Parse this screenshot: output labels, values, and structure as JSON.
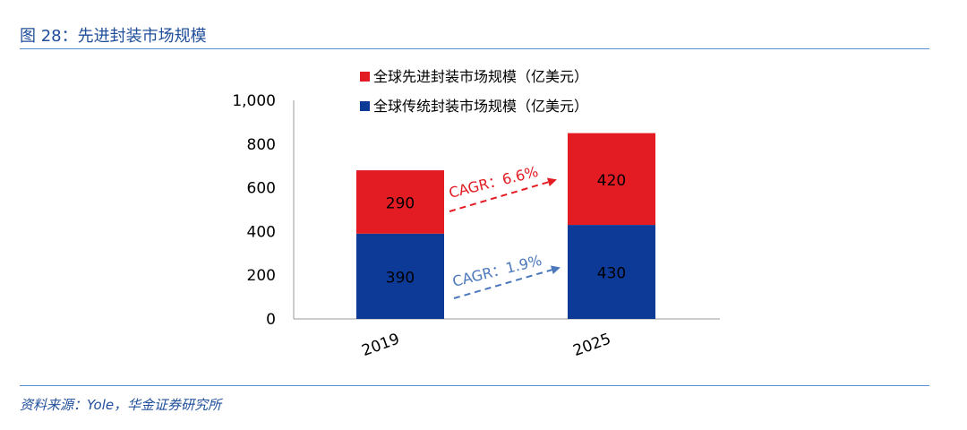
{
  "figure": {
    "title": "图 28：先进封装市场规模",
    "source": "资料来源：Yole，华金证券研究所"
  },
  "colors": {
    "advanced": "#e31b23",
    "traditional": "#0c3a96",
    "cagr_advanced": "#e31b23",
    "cagr_traditional": "#4a78bb",
    "title": "#1f4e9b",
    "rule": "#5b8ed6"
  },
  "chart_data": {
    "type": "bar",
    "stacked": true,
    "title": "",
    "xlabel": "",
    "ylabel": "",
    "categories": [
      "2019",
      "2025"
    ],
    "series": [
      {
        "name": "全球传统封装市场规模（亿美元）",
        "values": [
          390,
          430
        ]
      },
      {
        "name": "全球先进封装市场规模（亿美元）",
        "values": [
          290,
          420
        ]
      }
    ],
    "ylim": [
      0,
      1000
    ],
    "yticks": [
      "0",
      "200",
      "400",
      "600",
      "800",
      "1,000"
    ],
    "ytick_values": [
      0,
      200,
      400,
      600,
      800,
      1000
    ],
    "legend_position": "top",
    "grid": false,
    "annotations": [
      {
        "text": "CAGR：6.6%",
        "series": "advanced"
      },
      {
        "text": "CAGR：1.9%",
        "series": "traditional"
      }
    ]
  }
}
